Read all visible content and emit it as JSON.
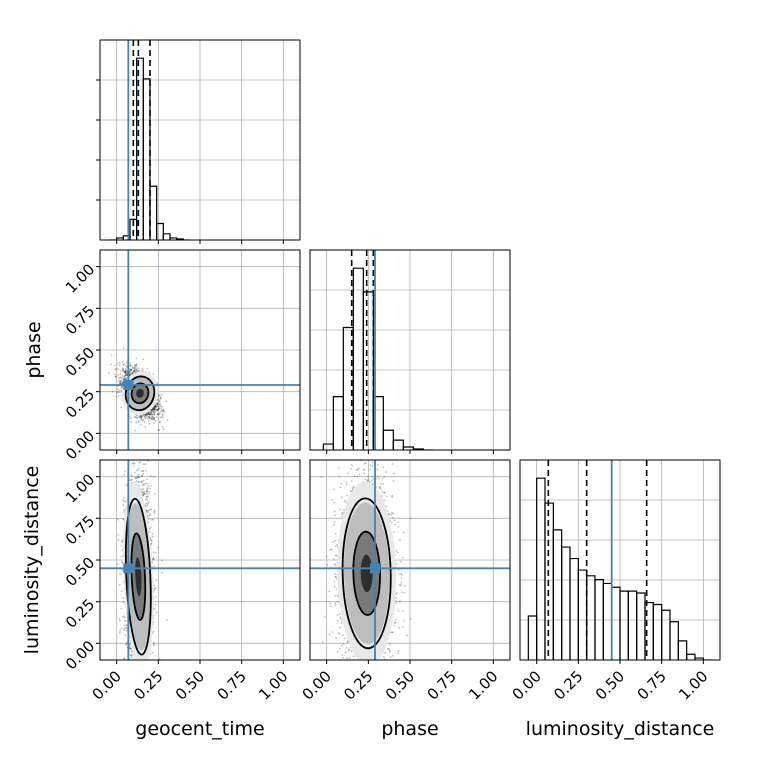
{
  "chart_data": {
    "type": "corner",
    "title": "",
    "parameters": [
      "geocent_time",
      "phase",
      "luminosity_distance"
    ],
    "axis_range": [
      -0.1,
      1.1
    ],
    "ticks": [
      0.0,
      0.25,
      0.5,
      0.75,
      1.0
    ],
    "tick_labels": [
      "0.00",
      "0.25",
      "0.50",
      "0.75",
      "1.00"
    ],
    "grid": true,
    "injection_color": "#4682b4",
    "quantile_line_color": "#000000",
    "contour_color": "#000000",
    "injection": {
      "geocent_time": 0.07,
      "phase": 0.29,
      "luminosity_distance": 0.45
    },
    "marginals": [
      {
        "param": "geocent_time",
        "quantiles": [
          0.1,
          0.13,
          0.2
        ],
        "bins": [
          -0.04,
          0.0,
          0.04,
          0.08,
          0.12,
          0.16,
          0.2,
          0.24,
          0.28,
          0.32,
          0.36,
          0.4,
          0.44
        ],
        "counts": [
          0.0,
          0.01,
          0.02,
          0.1,
          0.88,
          0.78,
          0.26,
          0.08,
          0.03,
          0.01,
          0.005,
          0.0
        ]
      },
      {
        "param": "phase",
        "quantiles": [
          0.15,
          0.24,
          0.28
        ],
        "bins": [
          -0.02,
          0.04,
          0.1,
          0.16,
          0.22,
          0.28,
          0.34,
          0.4,
          0.46,
          0.52,
          0.58,
          0.64
        ],
        "counts": [
          0.03,
          0.27,
          0.62,
          0.92,
          0.8,
          0.27,
          0.1,
          0.05,
          0.015,
          0.005,
          0.0
        ]
      },
      {
        "param": "luminosity_distance",
        "quantiles": [
          0.07,
          0.3,
          0.66
        ],
        "bins": [
          -0.05,
          0.0,
          0.05,
          0.1,
          0.15,
          0.2,
          0.25,
          0.3,
          0.35,
          0.4,
          0.45,
          0.5,
          0.55,
          0.6,
          0.65,
          0.7,
          0.75,
          0.8,
          0.85,
          0.9,
          0.95,
          1.0,
          1.05
        ],
        "counts": [
          0.23,
          0.95,
          0.82,
          0.68,
          0.59,
          0.53,
          0.47,
          0.44,
          0.42,
          0.4,
          0.38,
          0.36,
          0.36,
          0.35,
          0.3,
          0.29,
          0.26,
          0.2,
          0.1,
          0.03,
          0.01,
          0.0
        ]
      }
    ],
    "joint": [
      {
        "x": "geocent_time",
        "y": "phase",
        "center": [
          0.14,
          0.24
        ],
        "spread": [
          0.05,
          0.06
        ],
        "tilt": -0.5,
        "contour_levels": [
          1.0,
          1.7
        ]
      },
      {
        "x": "geocent_time",
        "y": "luminosity_distance",
        "center": [
          0.13,
          0.4
        ],
        "spread": [
          0.04,
          0.26
        ],
        "tilt": 0.1,
        "contour_levels": [
          1.0,
          1.8
        ]
      },
      {
        "x": "phase",
        "y": "luminosity_distance",
        "center": [
          0.24,
          0.42
        ],
        "spread": [
          0.08,
          0.25
        ],
        "tilt": 0.05,
        "contour_levels": [
          1.0,
          1.8
        ]
      }
    ]
  }
}
